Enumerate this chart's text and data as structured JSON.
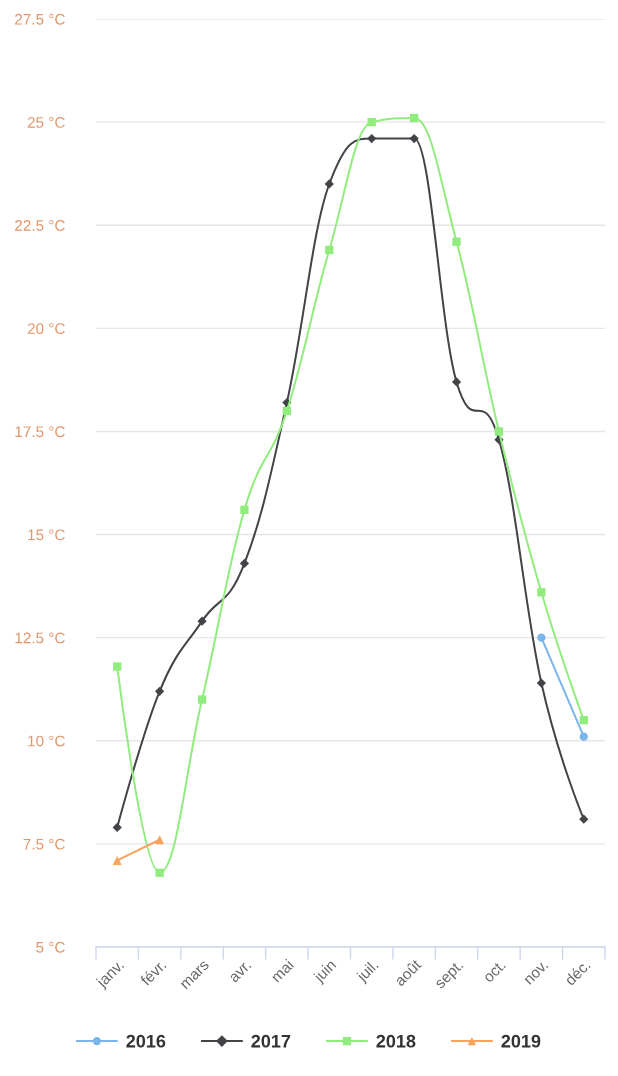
{
  "chart_data": {
    "type": "line",
    "categories": [
      "janv.",
      "févr.",
      "mars",
      "avr.",
      "mai",
      "juin",
      "juil.",
      "août",
      "sept.",
      "oct.",
      "nov.",
      "déc."
    ],
    "series": [
      {
        "name": "2016",
        "color": "#7cb5ec",
        "marker": "circle",
        "values": [
          null,
          null,
          null,
          null,
          null,
          null,
          null,
          null,
          null,
          null,
          12.5,
          10.1
        ]
      },
      {
        "name": "2017",
        "color": "#434348",
        "marker": "diamond",
        "values": [
          7.9,
          11.2,
          12.9,
          14.3,
          18.2,
          23.5,
          24.6,
          24.6,
          18.7,
          17.3,
          11.4,
          8.1
        ]
      },
      {
        "name": "2018",
        "color": "#90ed7d",
        "marker": "square",
        "values": [
          11.8,
          6.8,
          11.0,
          15.6,
          18.0,
          21.9,
          25.0,
          25.1,
          22.1,
          17.5,
          13.6,
          10.5
        ]
      },
      {
        "name": "2019",
        "color": "#f7a35c",
        "marker": "triangle",
        "values": [
          7.1,
          7.6,
          null,
          null,
          null,
          null,
          null,
          null,
          null,
          null,
          null,
          null
        ]
      }
    ],
    "ylim": [
      5,
      27.5
    ],
    "yticks": [
      {
        "value": 5,
        "label": "5 °C"
      },
      {
        "value": 7.5,
        "label": "7.5 °C"
      },
      {
        "value": 10,
        "label": "10 °C"
      },
      {
        "value": 12.5,
        "label": "12.5 °C"
      },
      {
        "value": 15,
        "label": "15 °C"
      },
      {
        "value": 17.5,
        "label": "17.5 °C"
      },
      {
        "value": 20,
        "label": "20 °C"
      },
      {
        "value": 22.5,
        "label": "22.5 °C"
      },
      {
        "value": 25,
        "label": "25 °C"
      },
      {
        "value": 27.5,
        "label": "27.5 °C"
      }
    ],
    "grid": "y",
    "legend": "bottom"
  }
}
